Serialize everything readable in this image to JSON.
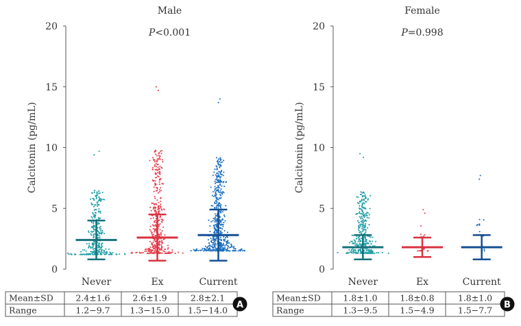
{
  "chart_data": [
    {
      "panel": "A",
      "type": "scatter",
      "title": "Male",
      "ylabel": "Calcitonin (pg/mL)",
      "xlabel": "",
      "ylim": [
        0,
        20
      ],
      "yticks": [
        0,
        5,
        10,
        15,
        20
      ],
      "p_value": {
        "prefix": "P",
        "text": "<0.001"
      },
      "categories": [
        "Never",
        "Ex",
        "Current"
      ],
      "colors": [
        "#1f9ea6",
        "#e8404f",
        "#1c6fc0"
      ],
      "summary_colors": [
        "#16707a",
        "#d8323f",
        "#134f92"
      ],
      "series": [
        {
          "name": "Never",
          "mean": 2.4,
          "sd": 1.6,
          "median": 2.4,
          "min": 1.2,
          "max": 9.7
        },
        {
          "name": "Ex",
          "mean": 2.6,
          "sd": 1.9,
          "median": 2.6,
          "min": 1.3,
          "max": 15.0
        },
        {
          "name": "Current",
          "mean": 2.8,
          "sd": 2.1,
          "median": 2.8,
          "min": 1.5,
          "max": 14.0
        }
      ],
      "table": {
        "rows": [
          {
            "label": "Mean±SD",
            "cells": [
              "2.4±1.6",
              "2.6±1.9",
              "2.8±2.1"
            ]
          },
          {
            "label": "Range",
            "cells": [
              "1.2−9.7",
              "1.3−15.0",
              "1.5−14.0"
            ]
          }
        ]
      }
    },
    {
      "panel": "B",
      "type": "scatter",
      "title": "Female",
      "ylabel": "Calcitonin (pg/mL)",
      "xlabel": "",
      "ylim": [
        0,
        20
      ],
      "yticks": [
        0,
        5,
        10,
        15,
        20
      ],
      "p_value": {
        "prefix": "P",
        "text": "=0.998"
      },
      "categories": [
        "Never",
        "Ex",
        "Current"
      ],
      "colors": [
        "#1f9ea6",
        "#e8404f",
        "#1c6fc0"
      ],
      "summary_colors": [
        "#16707a",
        "#d8323f",
        "#134f92"
      ],
      "series": [
        {
          "name": "Never",
          "mean": 1.8,
          "sd": 1.0,
          "median": 1.8,
          "min": 1.3,
          "max": 9.5
        },
        {
          "name": "Ex",
          "mean": 1.8,
          "sd": 0.8,
          "median": 1.8,
          "min": 1.5,
          "max": 4.9
        },
        {
          "name": "Current",
          "mean": 1.8,
          "sd": 1.0,
          "median": 1.8,
          "min": 1.5,
          "max": 7.7
        }
      ],
      "table": {
        "rows": [
          {
            "label": "Mean±SD",
            "cells": [
              "1.8±1.0",
              "1.8±0.8",
              "1.8±1.0"
            ]
          },
          {
            "label": "Range",
            "cells": [
              "1.3−9.5",
              "1.5−4.9",
              "1.5−7.7"
            ]
          }
        ]
      }
    }
  ]
}
